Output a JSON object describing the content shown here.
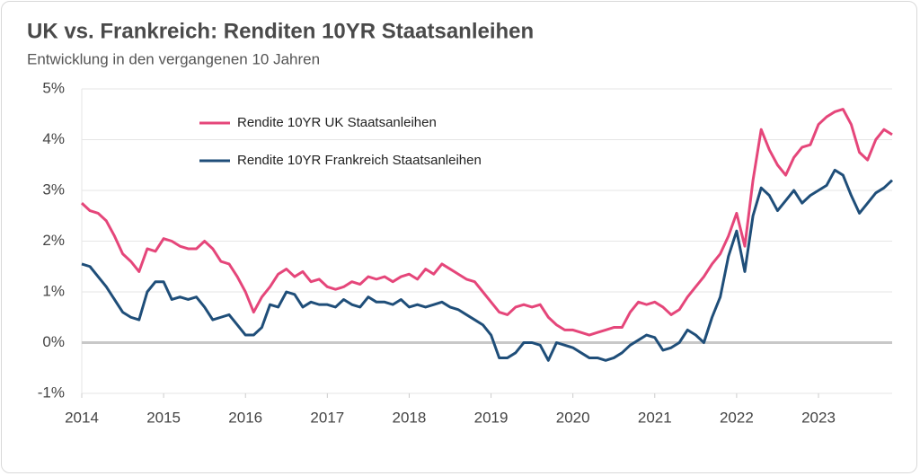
{
  "chart_data": {
    "type": "line",
    "title": "UK vs. Frankreich: Renditen 10YR Staatsanleihen",
    "subtitle": "Entwicklung in den vergangenen 10 Jahren",
    "x": [
      2014.0,
      2014.1,
      2014.2,
      2014.3,
      2014.4,
      2014.5,
      2014.6,
      2014.7,
      2014.8,
      2014.9,
      2015.0,
      2015.1,
      2015.2,
      2015.3,
      2015.4,
      2015.5,
      2015.6,
      2015.7,
      2015.8,
      2015.9,
      2016.0,
      2016.1,
      2016.2,
      2016.3,
      2016.4,
      2016.5,
      2016.6,
      2016.7,
      2016.8,
      2016.9,
      2017.0,
      2017.1,
      2017.2,
      2017.3,
      2017.4,
      2017.5,
      2017.6,
      2017.7,
      2017.8,
      2017.9,
      2018.0,
      2018.1,
      2018.2,
      2018.3,
      2018.4,
      2018.5,
      2018.6,
      2018.7,
      2018.8,
      2018.9,
      2019.0,
      2019.1,
      2019.2,
      2019.3,
      2019.4,
      2019.5,
      2019.6,
      2019.7,
      2019.8,
      2019.9,
      2020.0,
      2020.1,
      2020.2,
      2020.3,
      2020.4,
      2020.5,
      2020.6,
      2020.7,
      2020.8,
      2020.9,
      2021.0,
      2021.1,
      2021.2,
      2021.3,
      2021.4,
      2021.5,
      2021.6,
      2021.7,
      2021.8,
      2021.9,
      2022.0,
      2022.1,
      2022.2,
      2022.3,
      2022.4,
      2022.5,
      2022.6,
      2022.7,
      2022.8,
      2022.9,
      2023.0,
      2023.1,
      2023.2,
      2023.3,
      2023.4,
      2023.5,
      2023.6,
      2023.7,
      2023.8,
      2023.9
    ],
    "series": [
      {
        "name": "Rendite 10YR UK Staatsanleihen",
        "color": "#e5467a",
        "values": [
          2.75,
          2.6,
          2.55,
          2.4,
          2.1,
          1.75,
          1.6,
          1.4,
          1.85,
          1.8,
          2.05,
          2.0,
          1.9,
          1.85,
          1.85,
          2.0,
          1.85,
          1.6,
          1.55,
          1.3,
          1.0,
          0.6,
          0.9,
          1.1,
          1.35,
          1.45,
          1.3,
          1.4,
          1.2,
          1.25,
          1.1,
          1.05,
          1.1,
          1.2,
          1.15,
          1.3,
          1.25,
          1.3,
          1.2,
          1.3,
          1.35,
          1.25,
          1.45,
          1.35,
          1.55,
          1.45,
          1.35,
          1.25,
          1.2,
          1.0,
          0.8,
          0.6,
          0.55,
          0.7,
          0.75,
          0.7,
          0.75,
          0.5,
          0.35,
          0.25,
          0.25,
          0.2,
          0.15,
          0.2,
          0.25,
          0.3,
          0.3,
          0.6,
          0.8,
          0.75,
          0.8,
          0.7,
          0.55,
          0.65,
          0.9,
          1.1,
          1.3,
          1.55,
          1.75,
          2.1,
          2.55,
          1.9,
          3.2,
          4.2,
          3.8,
          3.5,
          3.3,
          3.65,
          3.85,
          3.9,
          4.3,
          4.45,
          4.55,
          4.6,
          4.3,
          3.75,
          3.6,
          4.0,
          4.2,
          4.1
        ]
      },
      {
        "name": "Rendite 10YR Frankreich Staatsanleihen",
        "color": "#1f4e79",
        "values": [
          1.55,
          1.5,
          1.3,
          1.1,
          0.85,
          0.6,
          0.5,
          0.45,
          1.0,
          1.2,
          1.2,
          0.85,
          0.9,
          0.85,
          0.9,
          0.7,
          0.45,
          0.5,
          0.55,
          0.35,
          0.15,
          0.15,
          0.3,
          0.75,
          0.7,
          1.0,
          0.95,
          0.7,
          0.8,
          0.75,
          0.75,
          0.7,
          0.85,
          0.75,
          0.7,
          0.9,
          0.8,
          0.8,
          0.75,
          0.85,
          0.7,
          0.75,
          0.7,
          0.75,
          0.8,
          0.7,
          0.65,
          0.55,
          0.45,
          0.35,
          0.15,
          -0.3,
          -0.3,
          -0.2,
          0.0,
          0.0,
          -0.05,
          -0.35,
          0.0,
          -0.05,
          -0.1,
          -0.2,
          -0.3,
          -0.3,
          -0.35,
          -0.3,
          -0.2,
          -0.05,
          0.05,
          0.15,
          0.1,
          -0.15,
          -0.1,
          0.0,
          0.25,
          0.15,
          0.0,
          0.5,
          0.9,
          1.7,
          2.2,
          1.4,
          2.5,
          3.05,
          2.9,
          2.6,
          2.8,
          3.0,
          2.75,
          2.9,
          3.0,
          3.1,
          3.4,
          3.3,
          2.9,
          2.55,
          2.75,
          2.95,
          3.05,
          3.2
        ]
      }
    ],
    "xlim": [
      2014,
      2023.9
    ],
    "xticks": [
      2014,
      2015,
      2016,
      2017,
      2018,
      2019,
      2020,
      2021,
      2022,
      2023
    ],
    "ylim": [
      -1,
      5
    ],
    "yticks": [
      {
        "value": -1,
        "label": "-1%"
      },
      {
        "value": 0,
        "label": "0%"
      },
      {
        "value": 1,
        "label": "1%"
      },
      {
        "value": 2,
        "label": "2%"
      },
      {
        "value": 3,
        "label": "3%"
      },
      {
        "value": 4,
        "label": "4%"
      },
      {
        "value": 5,
        "label": "5%"
      }
    ],
    "grid": true
  }
}
